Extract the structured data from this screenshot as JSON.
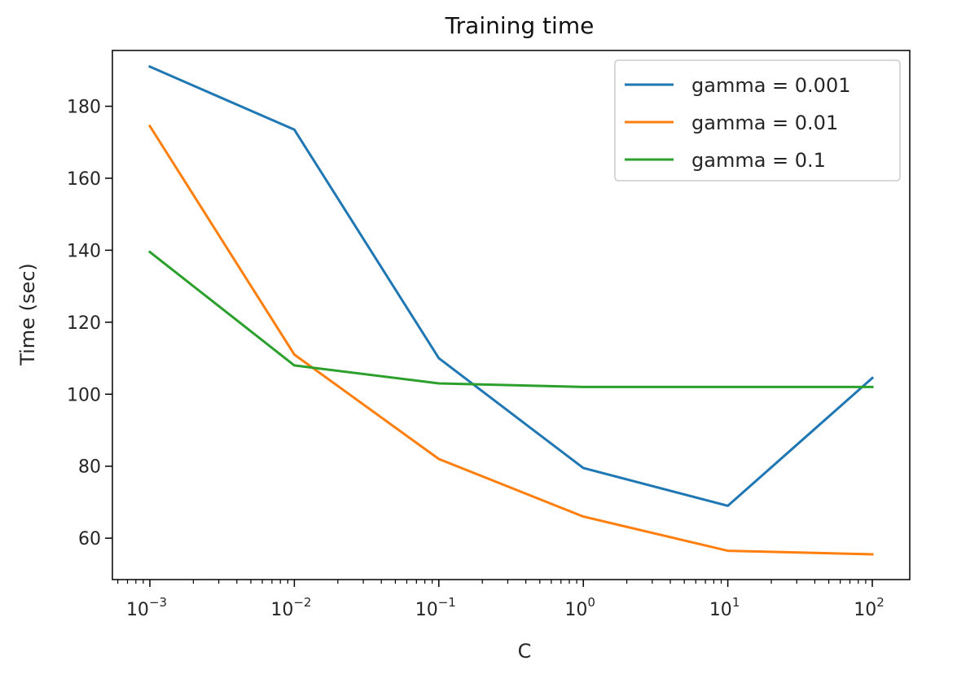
{
  "chart_data": {
    "type": "line",
    "title": "Training time",
    "xlabel": "C",
    "ylabel": "Time (sec)",
    "xscale": "log",
    "x": [
      0.001,
      0.01,
      0.1,
      1,
      10,
      100
    ],
    "xtick_labels": [
      {
        "base": "10",
        "exp": "−3"
      },
      {
        "base": "10",
        "exp": "−2"
      },
      {
        "base": "10",
        "exp": "−1"
      },
      {
        "base": "10",
        "exp": "0"
      },
      {
        "base": "10",
        "exp": "1"
      },
      {
        "base": "10",
        "exp": "2"
      }
    ],
    "yticks": [
      60,
      80,
      100,
      120,
      140,
      160,
      180
    ],
    "ylim": [
      48.5,
      195.5
    ],
    "legend_position": "top-right",
    "grid": false,
    "series": [
      {
        "name": "gamma = 0.001",
        "color": "#1f77b4",
        "values": [
          191,
          173.5,
          110,
          79.5,
          69,
          104.5
        ]
      },
      {
        "name": "gamma = 0.01",
        "color": "#ff7f0e",
        "values": [
          174.5,
          111,
          82,
          66,
          56.5,
          55.5
        ]
      },
      {
        "name": "gamma = 0.1",
        "color": "#2ca02c",
        "values": [
          139.5,
          108,
          103,
          102,
          102,
          102
        ]
      }
    ]
  }
}
